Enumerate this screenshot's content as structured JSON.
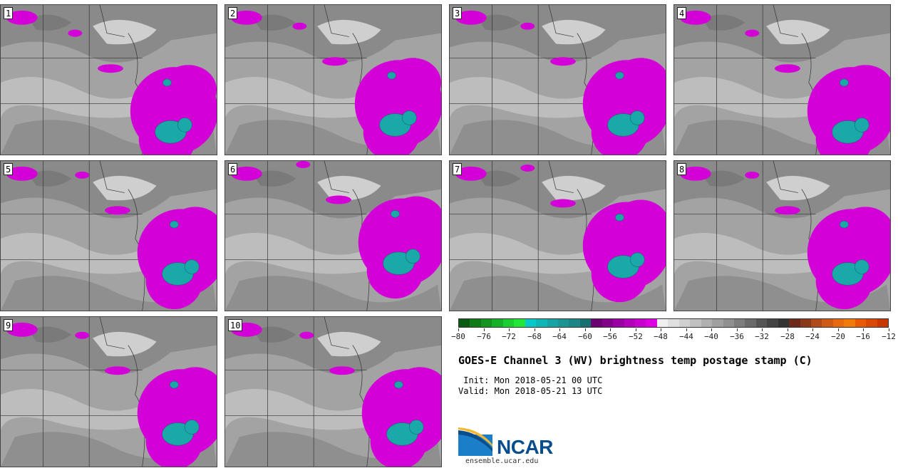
{
  "panels": [
    {
      "label": "1"
    },
    {
      "label": "2"
    },
    {
      "label": "3"
    },
    {
      "label": "4"
    },
    {
      "label": "5"
    },
    {
      "label": "6"
    },
    {
      "label": "7"
    },
    {
      "label": "8"
    },
    {
      "label": "9"
    },
    {
      "label": "10"
    }
  ],
  "colorbar": {
    "colors": [
      "#0b5a12",
      "#0f7a18",
      "#13951f",
      "#17b127",
      "#1ccf30",
      "#22e638",
      "#08c8c8",
      "#10b5b5",
      "#17a3a3",
      "#1b9494",
      "#1c8585",
      "#177070",
      "#6b0070",
      "#82008a",
      "#9a00a3",
      "#b300bb",
      "#c800cf",
      "#dd00e0",
      "#f0f0f0",
      "#e0e0e0",
      "#d0d0d0",
      "#c0c0c0",
      "#b0b0b0",
      "#a0a0a0",
      "#909090",
      "#7d7d7d",
      "#6a6a6a",
      "#555555",
      "#444444",
      "#333333",
      "#6b2a1a",
      "#8a3a1a",
      "#b04a18",
      "#cf5a14",
      "#e86a10",
      "#f07a0a",
      "#e85a06",
      "#d94804",
      "#c83602"
    ],
    "tick_labels": [
      "−80",
      "−76",
      "−72",
      "−68",
      "−64",
      "−60",
      "−56",
      "−52",
      "−48",
      "−44",
      "−40",
      "−36",
      "−32",
      "−28",
      "−24",
      "−20",
      "−16",
      "−12"
    ]
  },
  "title": "GOES-E Channel 3 (WV) brightness temp postage stamp (C)",
  "init": " Init: Mon 2018-05-21 00 UTC",
  "valid": "Valid: Mon 2018-05-21 13 UTC",
  "logo": {
    "word": "NCAR",
    "url": "ensemble.ucar.edu",
    "color": "#0a4d8c"
  }
}
